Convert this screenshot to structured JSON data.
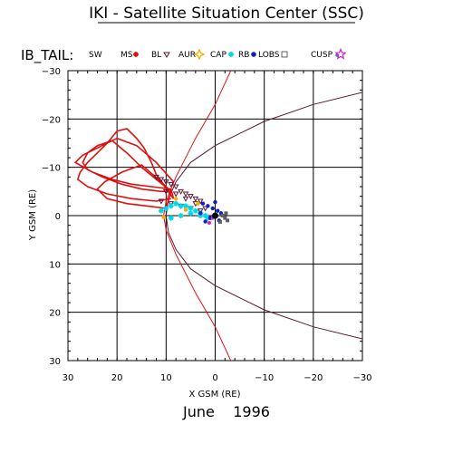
{
  "page_title": "IKI - Satellite Situation Center (SSC)",
  "orbit_label": "IB_TAIL:",
  "date_label": "June    1996",
  "legend": [
    {
      "label": "SW",
      "symbol": "none",
      "color": "#000000"
    },
    {
      "label": "MS",
      "symbol": "asterisk",
      "color": "#e01010"
    },
    {
      "label": "BL",
      "symbol": "triangle-down",
      "color": "#5a1838"
    },
    {
      "label": "AUR",
      "symbol": "star6",
      "color": "#f0b000"
    },
    {
      "label": "CAP",
      "symbol": "asterisk",
      "color": "#00d8e8"
    },
    {
      "label": "RB",
      "symbol": "dot",
      "color": "#1020c0"
    },
    {
      "label": "LOBS",
      "symbol": "square-open",
      "color": "#606060"
    },
    {
      "label": "CUSP",
      "symbol": "dot-small",
      "color": "#2a8a9a"
    },
    {
      "label": "",
      "symbol": "star5-open",
      "color": "#d020d0"
    }
  ],
  "chart_data": {
    "type": "scatter",
    "xlabel": "X GSM (RE)",
    "ylabel": "Y GSM (RE)",
    "xlim": [
      30,
      -30
    ],
    "ylim": [
      -30,
      30
    ],
    "xticks": [
      "30",
      "20",
      "10",
      "0",
      "−10",
      "−20",
      "−30"
    ],
    "yticks": [
      "−30",
      "−20",
      "−10",
      "0",
      "10",
      "20",
      "30"
    ],
    "grid": true,
    "colors": {
      "magnetosheath_track": "#e01010",
      "boundary_curve": "#5a1838",
      "aurora": "#f0b000",
      "cap": "#00d8e8",
      "radiation_belt": "#1020c0",
      "lobes": "#606060",
      "cusp_marker": "#d020d0"
    },
    "bow_shock": {
      "x": [
        -5,
        0,
        4,
        8,
        10,
        10.5,
        10,
        8,
        4,
        0,
        -5
      ],
      "y": [
        -34,
        -23,
        -16,
        -8,
        -3,
        0,
        3,
        8,
        16,
        23,
        34
      ]
    },
    "magnetopause": {
      "x": [
        -30,
        -20,
        -10,
        -5,
        0,
        5,
        8,
        9.5,
        10,
        9.5,
        8,
        5,
        0,
        -5,
        -10,
        -20,
        -30
      ],
      "y": [
        -25.5,
        -23,
        -19.5,
        -17,
        -14.5,
        -11,
        -7,
        -3.5,
        0,
        3.5,
        7,
        11,
        14.5,
        17,
        19.5,
        23,
        25.5
      ]
    },
    "red_track": {
      "x": [
        9,
        12,
        17,
        22,
        26,
        28,
        27.5,
        26,
        24,
        22,
        20,
        18,
        16,
        14.5,
        13,
        12,
        10.5,
        9,
        11,
        15,
        19,
        23,
        26,
        27,
        26,
        24,
        21,
        18,
        15,
        12,
        9,
        10,
        14,
        18,
        22,
        24,
        22.5,
        19,
        15,
        11,
        8.5,
        9,
        13,
        17,
        21,
        25,
        28.5,
        27,
        24,
        20,
        16,
        12,
        8.5
      ],
      "y": [
        -3.5,
        -3,
        -3.5,
        -4.5,
        -6,
        -7.5,
        -9,
        -11,
        -13,
        -15,
        -17.5,
        -18,
        -16,
        -14,
        -11,
        -8.5,
        -6.5,
        -5,
        -5,
        -5.5,
        -6.5,
        -8,
        -9.5,
        -11,
        -13,
        -14.5,
        -15.5,
        -13,
        -10,
        -7.5,
        -5,
        -1.5,
        -2,
        -2.5,
        -3.5,
        -5.5,
        -7,
        -9,
        -10.5,
        -7,
        -3.5,
        -5.5,
        -6,
        -6.5,
        -7.5,
        -9,
        -11,
        -12.5,
        -14,
        -16,
        -14.5,
        -11,
        -7
      ]
    },
    "boundary_layer_points": {
      "x": [
        12,
        11,
        10,
        9,
        8,
        7,
        6,
        5,
        4,
        3,
        11,
        9,
        7,
        5,
        3,
        10,
        8,
        6,
        4,
        2
      ],
      "y": [
        -8,
        -7.5,
        -7,
        -6.5,
        -6,
        -5,
        -4.5,
        -4,
        -3.5,
        -3,
        -3,
        -2.5,
        -2,
        -1.5,
        -1,
        -5,
        -4.5,
        -3.5,
        -2.5,
        -1.5
      ]
    },
    "cap_points": {
      "x": [
        11,
        10,
        9,
        8,
        7,
        6,
        5,
        4,
        3,
        2,
        9,
        7,
        5,
        3,
        1.5
      ],
      "y": [
        -1,
        -1.5,
        -2,
        -2.5,
        -2,
        -2,
        -1.5,
        -1,
        -0.5,
        0,
        0.5,
        0,
        -0.5,
        0,
        0.5
      ]
    },
    "aurora_points": {
      "x": [
        10.5,
        8,
        6,
        3.5,
        1
      ],
      "y": [
        0.3,
        -3.5,
        -1.2,
        -2.5,
        0.5
      ]
    },
    "radiation_belt_points": {
      "x": [
        2.5,
        1.5,
        0.5,
        -0.5,
        -1.2,
        3,
        1,
        -0.8,
        0,
        2
      ],
      "y": [
        -2.5,
        -2,
        -1.5,
        -1,
        -0.5,
        -0.5,
        0.5,
        1,
        -2.8,
        1.2
      ]
    },
    "lobe_points": {
      "x": [
        -1.5,
        -2,
        -2.5,
        -1,
        -2.2
      ],
      "y": [
        0,
        0.5,
        1,
        1.3,
        -0.5
      ]
    },
    "cusp_marker_points": {
      "x": [
        0.5,
        1.2
      ],
      "y": [
        0.5,
        1.5
      ]
    }
  }
}
